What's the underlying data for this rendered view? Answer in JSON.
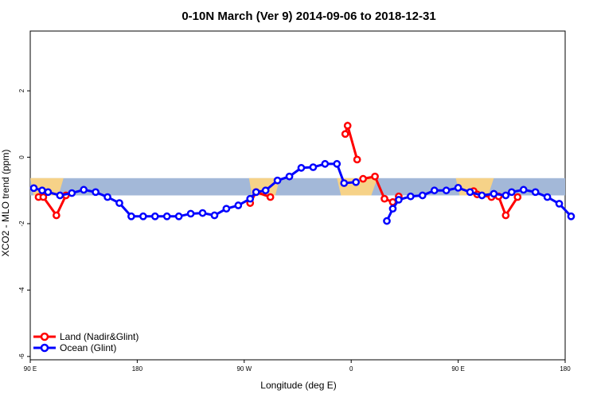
{
  "chart_data": {
    "type": "line",
    "title": "0-10N March (Ver 9)   2014-09-06 to 2018-12-31",
    "xlabel": "Longitude (deg E)",
    "ylabel": "XCO2 - MLO trend (ppm)",
    "xlim": [
      90,
      450
    ],
    "ylim": [
      -6.1,
      3.8
    ],
    "x_ticks": [
      90,
      180,
      270,
      360,
      450
    ],
    "x_tick_labels": [
      "90 E",
      "180",
      "90 W",
      "0",
      "90 E",
      "180"
    ],
    "x_tick_values": [
      90,
      180,
      270,
      360,
      450,
      540
    ],
    "y_ticks": [
      -6,
      -4,
      -2,
      0,
      2
    ],
    "y_tick_labels": [
      "-6",
      "-4",
      "-2",
      "0",
      "2"
    ],
    "band": {
      "ymin": -1.15,
      "ymax": -0.63,
      "color": "#a3b8d8"
    },
    "land_color": "#ffd580",
    "legend": {
      "position": "bottom-left"
    },
    "series": [
      {
        "name": "Land (Nadir&Glint)",
        "color": "#ff0000",
        "segments": [
          {
            "x": [
              97,
              101,
              112,
              120
            ],
            "y": [
              -1.2,
              -1.2,
              -1.75,
              -1.15
            ]
          },
          {
            "x": [
              275,
              280,
              292
            ],
            "y": [
              -1.38,
              -1.05,
              -1.2
            ]
          },
          {
            "x": [
              355,
              357,
              365
            ],
            "y": [
              0.7,
              0.95,
              -0.07
            ]
          },
          {
            "x": [
              370,
              380,
              388,
              395,
              400
            ],
            "y": [
              -0.65,
              -0.58,
              -1.25,
              -1.35,
              -1.18
            ]
          },
          {
            "x": [
              463,
              466,
              478,
              484,
              490,
              500
            ],
            "y": [
              -1.02,
              -1.12,
              -1.2,
              -1.18,
              -1.75,
              -1.2
            ]
          }
        ]
      },
      {
        "name": "Ocean (Glint)",
        "color": "#0000ff",
        "segments": [
          {
            "x": [
              93,
              100,
              105,
              115,
              125,
              135,
              145,
              155,
              165,
              175,
              185,
              195,
              205,
              215,
              225,
              235,
              245,
              255,
              265,
              275,
              280,
              288,
              298,
              308,
              318,
              328,
              338,
              348,
              354,
              364
            ],
            "y": [
              -0.93,
              -1.0,
              -1.05,
              -1.15,
              -1.08,
              -0.98,
              -1.05,
              -1.2,
              -1.38,
              -1.78,
              -1.78,
              -1.78,
              -1.78,
              -1.78,
              -1.7,
              -1.68,
              -1.75,
              -1.55,
              -1.45,
              -1.25,
              -1.05,
              -1.0,
              -0.7,
              -0.58,
              -0.32,
              -0.3,
              -0.2,
              -0.2,
              -0.78,
              -0.75
            ]
          },
          {
            "x": [
              390,
              395,
              400,
              410,
              420,
              430,
              440,
              450,
              460,
              470,
              480,
              490,
              495,
              505,
              515,
              525,
              535,
              545
            ],
            "y": [
              -1.92,
              -1.55,
              -1.28,
              -1.18,
              -1.15,
              -1.0,
              -1.0,
              -0.92,
              -1.05,
              -1.15,
              -1.1,
              -1.15,
              -1.05,
              -0.98,
              -1.05,
              -1.2,
              -1.4,
              -1.78
            ]
          }
        ]
      }
    ]
  }
}
